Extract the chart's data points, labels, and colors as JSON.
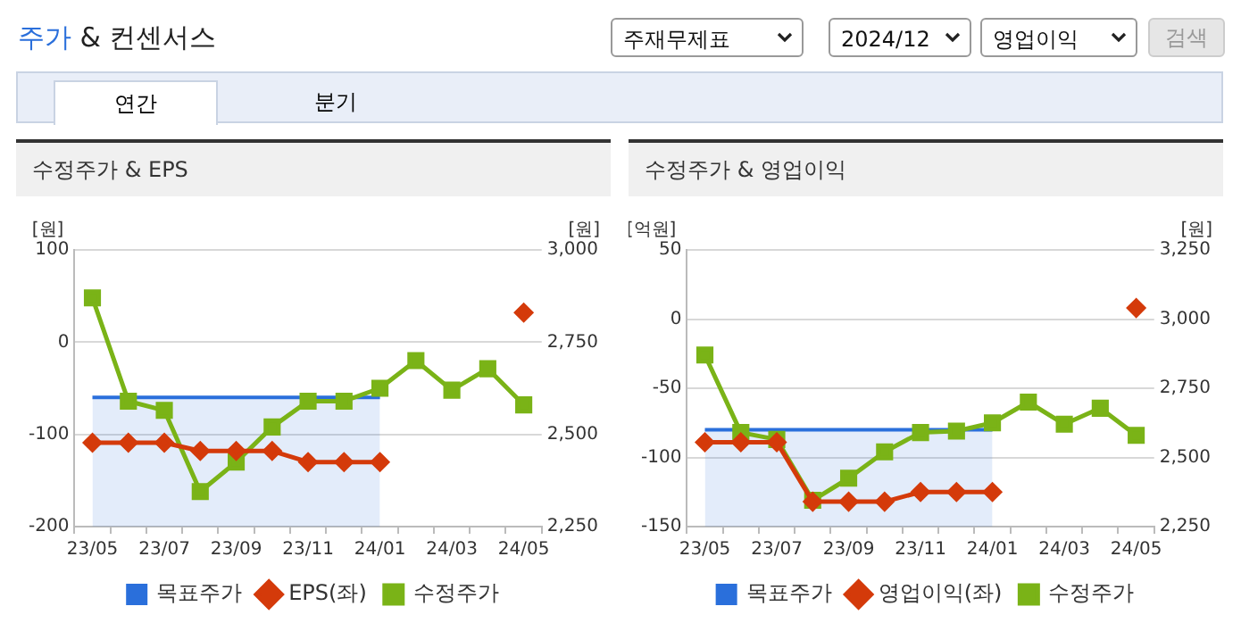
{
  "chart_data": [
    {
      "type": "other",
      "title": "주가 & 컨센서스",
      "annotations": [
        "주재무제표",
        "2024/12",
        "영업이익",
        "검색",
        "연간",
        "분기"
      ]
    },
    {
      "type": "line",
      "title": "수정주가 & EPS",
      "ylabel": "[원]",
      "y2label": "[원]",
      "categories": [
        "23/05",
        null,
        "23/07",
        null,
        "23/09",
        null,
        "23/11",
        null,
        "24/01",
        null,
        "24/03",
        null,
        "24/05"
      ],
      "ylim": [
        -200,
        100
      ],
      "yticks": [
        -200,
        -100,
        0,
        100
      ],
      "y2lim": [
        2250,
        3000
      ],
      "y2ticks": [
        {
          "value": 2250,
          "label": "2,250"
        },
        {
          "value": 2500,
          "label": "2,500"
        },
        {
          "value": 2750,
          "label": "2,750"
        },
        {
          "value": 3000,
          "label": "3,000"
        }
      ],
      "grid": "y",
      "legend": "bottom",
      "series": [
        {
          "name": "목표주가",
          "type": "area",
          "color": "#2a6fdb",
          "axis": "y2",
          "marker": "none",
          "values": [
            2600,
            2600,
            2600,
            2600,
            2600,
            2600,
            2600,
            2600,
            2600,
            null,
            null,
            null,
            null
          ]
        },
        {
          "name": "EPS(좌)",
          "color": "#d43a0a",
          "marker": "diamond",
          "values": [
            -109,
            -109,
            -109,
            -118,
            -118,
            -118,
            -130,
            -130,
            -130,
            null,
            null,
            null,
            32
          ]
        },
        {
          "name": "수정주가",
          "color": "#7ab317",
          "axis": "y2",
          "marker": "square",
          "values": [
            2870,
            2590,
            2565,
            2345,
            2425,
            2520,
            2590,
            2590,
            2625,
            2700,
            2620,
            2678,
            2580
          ]
        }
      ]
    },
    {
      "type": "line",
      "title": "수정주가 & 영업이익",
      "ylabel": "[억원]",
      "y2label": "[원]",
      "categories": [
        "23/05",
        null,
        "23/07",
        null,
        "23/09",
        null,
        "23/11",
        null,
        "24/01",
        null,
        "24/03",
        null,
        "24/05"
      ],
      "ylim": [
        -150,
        50
      ],
      "yticks": [
        -150,
        -100,
        -50,
        0,
        50
      ],
      "y2lim": [
        2250,
        3250
      ],
      "y2ticks": [
        {
          "value": 2250,
          "label": "2,250"
        },
        {
          "value": 2500,
          "label": "2,500"
        },
        {
          "value": 2750,
          "label": "2,750"
        },
        {
          "value": 3000,
          "label": "3,000"
        },
        {
          "value": 3250,
          "label": "3,250"
        }
      ],
      "grid": "y",
      "legend": "bottom",
      "series": [
        {
          "name": "목표주가",
          "type": "area",
          "color": "#2a6fdb",
          "axis": "y2",
          "marker": "none",
          "values": [
            2600,
            2600,
            2600,
            2600,
            2600,
            2600,
            2600,
            2600,
            2600,
            null,
            null,
            null,
            null
          ]
        },
        {
          "name": "영업이익(좌)",
          "color": "#d43a0a",
          "marker": "diamond",
          "values": [
            -89,
            -89,
            -89,
            -132,
            -132,
            -132,
            -125,
            -125,
            -125,
            null,
            null,
            null,
            8
          ]
        },
        {
          "name": "수정주가",
          "color": "#7ab317",
          "axis": "y2",
          "marker": "square",
          "values": [
            2870,
            2590,
            2565,
            2345,
            2425,
            2520,
            2590,
            2595,
            2625,
            2700,
            2620,
            2678,
            2580
          ]
        }
      ]
    }
  ]
}
